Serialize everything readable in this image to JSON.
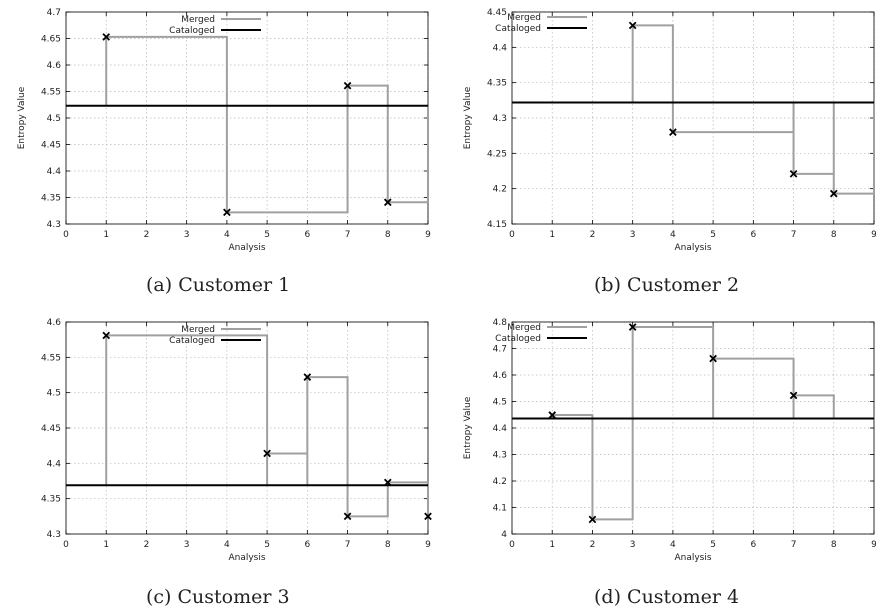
{
  "figure": {
    "captions": [
      "(a) Customer 1",
      "(b) Customer 2",
      "(c) Customer 3",
      "(d) Customer 4"
    ]
  },
  "colors": {
    "merged": "#a0a0a0",
    "cataloged": "#000000",
    "grid": "#b8b8b8"
  },
  "chart_data": [
    {
      "type": "line",
      "subtitle": "(a) Customer 1",
      "xlabel": "Analysis",
      "ylabel": "Entropy Value",
      "xlim": [
        0,
        9
      ],
      "ylim": [
        4.3,
        4.7
      ],
      "xticks": [
        "0",
        "1",
        "2",
        "3",
        "4",
        "5",
        "6",
        "7",
        "8",
        "9"
      ],
      "yticks": [
        "4.3",
        "4.35",
        "4.4",
        "4.45",
        "4.5",
        "4.55",
        "4.6",
        "4.65",
        "4.7"
      ],
      "grid": true,
      "legend_position": "top-center",
      "series": [
        {
          "name": "Merged",
          "style": "step",
          "points": [
            [
              1,
              4.653
            ],
            [
              4,
              4.322
            ],
            [
              7,
              4.561
            ],
            [
              8,
              4.341
            ]
          ]
        },
        {
          "name": "Cataloged",
          "style": "constant",
          "value": 4.523
        }
      ]
    },
    {
      "type": "line",
      "subtitle": "(b) Customer 2",
      "xlabel": "Analysis",
      "ylabel": "Entropy Value",
      "xlim": [
        0,
        9
      ],
      "ylim": [
        4.15,
        4.45
      ],
      "xticks": [
        "0",
        "1",
        "2",
        "3",
        "4",
        "5",
        "6",
        "7",
        "8",
        "9"
      ],
      "yticks": [
        "4.15",
        "4.2",
        "4.25",
        "4.3",
        "4.35",
        "4.4",
        "4.45"
      ],
      "grid": true,
      "legend_position": "top-left",
      "series": [
        {
          "name": "Merged",
          "style": "step",
          "points": [
            [
              3,
              4.431
            ],
            [
              4,
              4.28
            ],
            [
              7,
              4.221
            ],
            [
              8,
              4.193
            ]
          ]
        },
        {
          "name": "Cataloged",
          "style": "constant",
          "value": 4.322
        }
      ]
    },
    {
      "type": "line",
      "subtitle": "(c) Customer 3",
      "xlabel": "Analysis",
      "ylabel": "",
      "xlim": [
        0,
        9
      ],
      "ylim": [
        4.3,
        4.6
      ],
      "xticks": [
        "0",
        "1",
        "2",
        "3",
        "4",
        "5",
        "6",
        "7",
        "8",
        "9"
      ],
      "yticks": [
        "4.3",
        "4.35",
        "4.4",
        "4.45",
        "4.5",
        "4.55",
        "4.6"
      ],
      "grid": true,
      "legend_position": "top-center",
      "series": [
        {
          "name": "Merged",
          "style": "step",
          "points": [
            [
              1,
              4.581
            ],
            [
              5,
              4.414
            ],
            [
              6,
              4.522
            ],
            [
              7,
              4.325
            ],
            [
              8,
              4.373
            ],
            [
              9,
              4.325
            ]
          ]
        },
        {
          "name": "Cataloged",
          "style": "constant",
          "value": 4.369
        }
      ]
    },
    {
      "type": "line",
      "subtitle": "(d) Customer 4",
      "xlabel": "Analysis",
      "ylabel": "Entropy Value",
      "xlim": [
        0,
        9
      ],
      "ylim": [
        4.0,
        4.8
      ],
      "xticks": [
        "0",
        "1",
        "2",
        "3",
        "4",
        "5",
        "6",
        "7",
        "8",
        "9"
      ],
      "yticks": [
        "4",
        "4.1",
        "4.2",
        "4.3",
        "4.4",
        "4.5",
        "4.6",
        "4.7",
        "4.8"
      ],
      "grid": true,
      "legend_position": "top-left",
      "series": [
        {
          "name": "Merged",
          "style": "step",
          "points": [
            [
              1,
              4.449
            ],
            [
              2,
              4.055
            ],
            [
              3,
              4.781
            ],
            [
              5,
              4.662
            ],
            [
              7,
              4.523
            ]
          ]
        },
        {
          "name": "Cataloged",
          "style": "constant",
          "value": 4.436
        }
      ]
    }
  ]
}
